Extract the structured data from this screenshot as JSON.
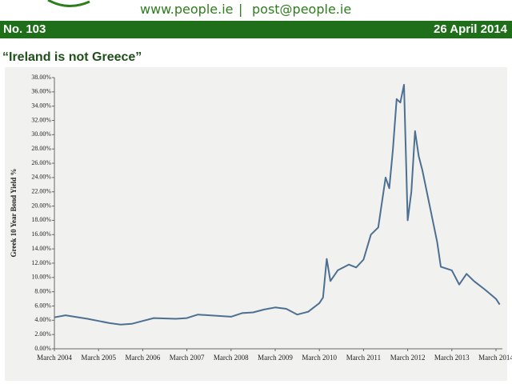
{
  "header": {
    "url": "www.people.ie",
    "email": "post@people.ie"
  },
  "bar": {
    "number": "No. 103",
    "date": "26 April 2014"
  },
  "chart_data": {
    "type": "line",
    "title": "“Ireland is not Greece”",
    "y_label": "Greek 10 Year Bond Yield %",
    "color": "#4d6f91",
    "x": [
      "2004-03",
      "2004-06",
      "2004-12",
      "2005-03",
      "2005-06",
      "2005-09",
      "2005-12",
      "2006-03",
      "2006-06",
      "2006-12",
      "2007-03",
      "2007-06",
      "2007-12",
      "2008-03",
      "2008-06",
      "2008-09",
      "2008-12",
      "2009-03",
      "2009-06",
      "2009-09",
      "2009-12",
      "2010-03",
      "2010-04",
      "2010-05",
      "2010-06",
      "2010-08",
      "2010-11",
      "2011-01",
      "2011-03",
      "2011-05",
      "2011-07",
      "2011-09",
      "2011-10",
      "2011-11",
      "2011-12",
      "2012-01",
      "2012-02",
      "2012-03",
      "2012-04",
      "2012-05",
      "2012-06",
      "2012-07",
      "2012-09",
      "2012-11",
      "2012-12",
      "2013-03",
      "2013-05",
      "2013-07",
      "2013-09",
      "2013-12",
      "2014-03",
      "2014-04"
    ],
    "values": [
      4.4,
      4.7,
      4.2,
      3.9,
      3.6,
      3.4,
      3.5,
      3.9,
      4.3,
      4.2,
      4.3,
      4.8,
      4.6,
      4.5,
      5.0,
      5.1,
      5.5,
      5.8,
      5.6,
      4.8,
      5.2,
      6.4,
      7.2,
      12.6,
      9.5,
      11.0,
      11.8,
      11.4,
      12.5,
      16.0,
      17.0,
      24.0,
      22.5,
      28.0,
      35.0,
      34.5,
      37.0,
      18.0,
      22.0,
      30.5,
      27.0,
      25.0,
      20.0,
      15.0,
      11.5,
      11.0,
      9.0,
      10.5,
      9.5,
      8.3,
      7.0,
      6.2
    ],
    "xlim": [
      "2004-03",
      "2014-03"
    ],
    "xticks": [
      {
        "value": "2004-03",
        "label": "March 2004"
      },
      {
        "value": "2005-03",
        "label": "March 2005"
      },
      {
        "value": "2006-03",
        "label": "March 2006"
      },
      {
        "value": "2007-03",
        "label": "March 2007"
      },
      {
        "value": "2008-03",
        "label": "March 2008"
      },
      {
        "value": "2009-03",
        "label": "March 2009"
      },
      {
        "value": "2010-03",
        "label": "March 2010"
      },
      {
        "value": "2011-03",
        "label": "March 2011"
      },
      {
        "value": "2012-03",
        "label": "March 2012"
      },
      {
        "value": "2013-03",
        "label": "March 2013"
      },
      {
        "value": "2014-03",
        "label": "March 2014"
      }
    ],
    "ylim": [
      0,
      38
    ],
    "yticks": [
      {
        "value": 0,
        "label": "0.00%"
      },
      {
        "value": 2,
        "label": "2.00%"
      },
      {
        "value": 4,
        "label": "4.00%"
      },
      {
        "value": 6,
        "label": "6.00%"
      },
      {
        "value": 8,
        "label": "8.00%"
      },
      {
        "value": 10,
        "label": "10.00%"
      },
      {
        "value": 12,
        "label": "12.00%"
      },
      {
        "value": 14,
        "label": "14.00%"
      },
      {
        "value": 16,
        "label": "16.00%"
      },
      {
        "value": 18,
        "label": "18.00%"
      },
      {
        "value": 20,
        "label": "20.00%"
      },
      {
        "value": 22,
        "label": "22.00%"
      },
      {
        "value": 24,
        "label": "24.00%"
      },
      {
        "value": 26,
        "label": "26.00%"
      },
      {
        "value": 28,
        "label": "28.00%"
      },
      {
        "value": 30,
        "label": "30.00%"
      },
      {
        "value": 32,
        "label": "32.00%"
      },
      {
        "value": 34,
        "label": "34.00%"
      },
      {
        "value": 36,
        "label": "36.00%"
      },
      {
        "value": 38,
        "label": "38.00%"
      }
    ]
  }
}
